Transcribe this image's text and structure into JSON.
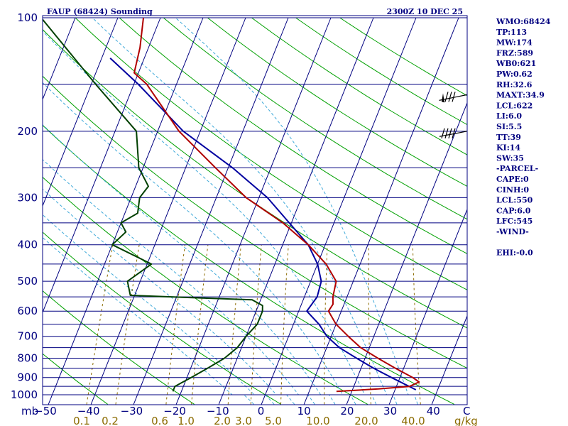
{
  "header": {
    "station": "FAUP (68424) Sounding",
    "time": "2300Z 10 DEC 25"
  },
  "indices": [
    "WMO:68424",
    "TP:113",
    "MW:174",
    "FRZ:589",
    "WB0:621",
    "PW:0.62",
    "RH:32.6",
    "MAXT:34.9",
    "LCL:622",
    "LI:6.0",
    "SI:5.5",
    "TT:39",
    "KI:14",
    "SW:35",
    "-PARCEL-",
    "CAPE:0",
    "CINH:0",
    "LCL:550",
    "CAP:6.0",
    "LFC:545",
    "-WIND-",
    "",
    "EHI:-0.0"
  ],
  "colors": {
    "isobar": "#000080",
    "isotherm": "#000080",
    "dry_adiabat": "#00a000",
    "moist_adiabat": "#3fa9d9",
    "mixing_ratio": "#8b6b00",
    "temperature": "#b00000",
    "dewpoint": "#004000",
    "parcel": "#0000a0"
  },
  "chart_data": {
    "type": "skew-t",
    "ylabel": "mb",
    "xlabel_right": "C",
    "mixing_label": "g/kg",
    "pressure_ticks": [
      100,
      200,
      300,
      400,
      500,
      600,
      700,
      800,
      900,
      1000
    ],
    "pressure_lines": [
      100,
      150,
      200,
      250,
      300,
      350,
      400,
      450,
      500,
      550,
      600,
      650,
      700,
      750,
      800,
      850,
      900,
      950,
      1000
    ],
    "temp_ticks": [
      "−50",
      "−40",
      "−30",
      "−20",
      "−10",
      "0",
      "10",
      "20",
      "30",
      "40"
    ],
    "mixing_ticks": [
      "0.1",
      "0.2",
      "0.6",
      "1.0",
      "2.0",
      "3.0",
      "5.0",
      "10.0",
      "20.0",
      "40.0"
    ],
    "temperature": {
      "p": [
        980,
        965,
        950,
        925,
        900,
        850,
        800,
        750,
        700,
        650,
        600,
        575,
        550,
        500,
        450,
        400,
        350,
        300,
        250,
        200,
        150,
        140,
        120,
        100
      ],
      "t": [
        16.4,
        26,
        33.1,
        34.9,
        33,
        28,
        23,
        18,
        14,
        10,
        7,
        7.4,
        6.7,
        6,
        2,
        -4,
        -12,
        -23,
        -33,
        -45,
        -57,
        -61,
        -62,
        -64
      ]
    },
    "dewpoint": {
      "p": [
        980,
        950,
        900,
        850,
        800,
        750,
        700,
        650,
        600,
        580,
        560,
        545,
        500,
        450,
        400,
        370,
        350,
        330,
        300,
        280,
        250,
        200,
        150,
        100
      ],
      "t": [
        -22,
        -22,
        -19,
        -16,
        -13,
        -11,
        -10,
        -8.5,
        -8.5,
        -9,
        -12,
        -41,
        -43,
        -39,
        -50,
        -48,
        -50,
        -47,
        -48,
        -47,
        -51,
        -55,
        -69,
        -88
      ]
    },
    "parcel": {
      "p": [
        970,
        900,
        850,
        800,
        750,
        700,
        650,
        600,
        550,
        500,
        450,
        400,
        350,
        300,
        250,
        200,
        150,
        128
      ],
      "t": [
        34.9,
        28,
        22.9,
        18,
        13,
        9,
        6,
        1.9,
        3,
        2.5,
        0,
        -4,
        -10.5,
        -18,
        -29,
        -44,
        -59,
        -68
      ]
    },
    "dry_adiabats_theta_c": [
      -80,
      -60,
      -40,
      -20,
      0,
      20,
      40,
      60,
      80,
      100,
      120,
      140,
      160,
      180,
      200,
      220
    ],
    "moist_adiabats_c": [
      -5,
      0,
      5,
      10,
      15,
      20,
      25,
      30,
      35
    ],
    "mixing_ratios": [
      0.1,
      0.2,
      0.6,
      1.0,
      2.0,
      3.0,
      5.0,
      10.0,
      20.0,
      40.0
    ],
    "wind_barbs": [
      {
        "p": 160,
        "dir": 300,
        "spd": 85
      },
      {
        "p": 200,
        "dir": 310,
        "spd": 40
      }
    ]
  }
}
